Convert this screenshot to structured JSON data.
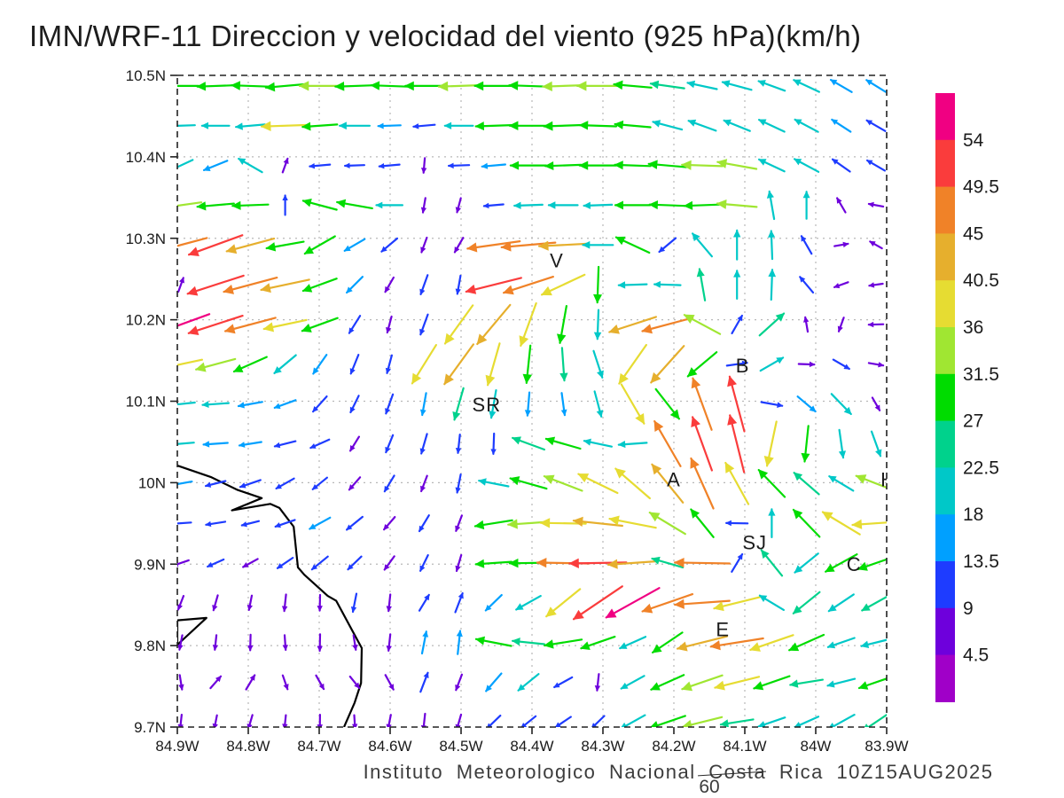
{
  "title": "IMN/WRF-11 Direccion y velocidad del viento (925 hPa)(km/h)",
  "footer": {
    "text": "Instituto Meteorologico Nacional Costa Rica  10Z15AUG2025",
    "forecast_hour": "60"
  },
  "chart_data": {
    "type": "vector-field",
    "model": "IMN/WRF-11",
    "variable": "Direccion y velocidad del viento",
    "level": "925 hPa",
    "units": "km/h",
    "valid_time": "10Z15AUG2025",
    "x_axis": {
      "values": [
        84.9,
        84.8,
        84.7,
        84.6,
        84.5,
        84.4,
        84.3,
        84.2,
        84.1,
        84.0,
        83.9
      ],
      "labels": [
        "84.9W",
        "84.8W",
        "84.7W",
        "84.6W",
        "84.5W",
        "84.4W",
        "84.3W",
        "84.2W",
        "84.1W",
        "84W",
        "83.9W"
      ],
      "min": 83.9,
      "max": 84.9
    },
    "y_axis": {
      "values": [
        10.5,
        10.4,
        10.3,
        10.2,
        10.1,
        10.0,
        9.9,
        9.8,
        9.7
      ],
      "labels": [
        "10.5N",
        "10.4N",
        "10.3N",
        "10.2N",
        "10.1N",
        "10N",
        "9.9N",
        "9.8N",
        "9.7N"
      ],
      "min": 9.7,
      "max": 10.5
    },
    "grid_on": true,
    "colorbar": {
      "position": "right",
      "levels": [
        4.5,
        9,
        13.5,
        18,
        22.5,
        27,
        31.5,
        36,
        40.5,
        45,
        49.5,
        54
      ],
      "labels_top_down": [
        "54",
        "49.5",
        "45",
        "40.5",
        "36",
        "31.5",
        "27",
        "22.5",
        "18",
        "13.5",
        "9",
        "4.5"
      ],
      "colors": [
        "#a000c8",
        "#6e00dc",
        "#1e3cff",
        "#00a0ff",
        "#00c8c8",
        "#00d28c",
        "#00dc00",
        "#a0e632",
        "#e6dc32",
        "#e6af2d",
        "#f08228",
        "#fa3c3c",
        "#f00082"
      ]
    },
    "cities": [
      {
        "label": "V",
        "lon": 84.365,
        "lat": 10.272
      },
      {
        "label": "B",
        "lon": 84.103,
        "lat": 10.143
      },
      {
        "label": "SR",
        "lon": 84.464,
        "lat": 10.095
      },
      {
        "label": "A",
        "lon": 84.2,
        "lat": 10.003
      },
      {
        "label": "SJ",
        "lon": 84.086,
        "lat": 9.926
      },
      {
        "label": "C",
        "lon": 83.946,
        "lat": 9.899
      },
      {
        "label": "E",
        "lon": 84.131,
        "lat": 9.819
      },
      {
        "label": "H",
        "lon": 83.898,
        "lat": 10.003
      }
    ],
    "coastline": {
      "main": [
        [
          84.9,
          10.021
        ],
        [
          84.853,
          10.007
        ],
        [
          84.815,
          9.991
        ],
        [
          84.781,
          9.981
        ],
        [
          84.823,
          9.966
        ],
        [
          84.769,
          9.974
        ],
        [
          84.756,
          9.969
        ],
        [
          84.736,
          9.946
        ],
        [
          84.73,
          9.896
        ],
        [
          84.721,
          9.887
        ],
        [
          84.688,
          9.861
        ],
        [
          84.676,
          9.855
        ],
        [
          84.65,
          9.813
        ],
        [
          84.64,
          9.797
        ],
        [
          84.641,
          9.754
        ],
        [
          84.65,
          9.73
        ],
        [
          84.665,
          9.7
        ]
      ],
      "peninsula": [
        [
          84.9,
          9.831
        ],
        [
          84.859,
          9.834
        ],
        [
          84.9,
          9.801
        ],
        [
          84.9,
          9.831
        ]
      ]
    },
    "wind_grid": {
      "lon_start": 84.895,
      "lon_step": -0.049,
      "lat_start": 10.487,
      "lat_step": -0.0488,
      "cols": 21,
      "rows": 17,
      "format": "direction_deg_toward:speed_kmh",
      "vectors": [
        "270:28 268:29 272:30 265:31 270:33 268:31 272:29 270:30 268:33 270:30 272:31 268:33 270:34 275:30 278:26 282:22 285:22 290:20 295:20 300:16 302:14",
        "268:20 270:19 265:21 268:40 266:27 270:22 268:14 265:13 270:20 268:28 270:30 268:31 272:29 275:28 285:22 290:21 292:20 295:20 298:18 303:14 300:13",
        "245:18 248:17 300:19 20:6 265:12 268:11 265:12 185:6 268:12 265:15 270:28 268:28 270:29 272:28 275:30 272:33 280:32 295:20 298:19 305:13 300:12",
        "262:34 265:29 268:28 0:11 285:27 280:28 270:18 190:6 195:6 265:11 268:20 270:21 268:20 270:27 272:28 268:28 275:32 350:20 0:19 330:8 280:6",
        "255:47 250:50 255:42 260:30 240:27 240:15 230:12 200:7 210:8 262:46 265:47 267:41 270:22 295:29 230:13 320:22 0:21 358:20 330:12 80:5 300:5",
        "20:6 252:52 255:48 258:42 250:28 225:14 210:8 200:12 190:10 256:50 252:45 245:40 182:28 268:20 272:18 350:24 0:20 2:22 320:12 250:6 262:5",
        "250:54 252:50 255:45 258:36 250:30 212:12 195:8 200:13 216:40 220:44 200:38 190:30 182:21 252:42 255:45 298:33 30:12 48:25 350:6 200:6 268:6",
        "258:36 255:33 246:28 230:20 215:15 202:12 195:10 212:38 216:42 196:36 186:30 176:25 162:20 215:40 222:42 230:30 82:12 60:18 92:7 120:10 100:6",
        "264:20 266:18 260:16 250:14 222:12 206:10 200:12 190:14 196:25 190:20 185:15 172:14 165:18 150:38 142:30 340:48 345:50 100:13 130:15 136:20 150:6",
        "265:18 266:16 261:14 256:13 246:12 212:8 202:10 196:12 186:10 182:12 290:26 286:28 282:20 266:20 330:45 340:50 346:52 192:38 186:28 172:20 160:18",
        "260:14 256:12 251:13 241:12 231:10 221:8 211:10 201:8 191:10 281:22 286:30 291:33 296:36 311:38 321:42 336:48 331:40 316:30 311:25 301:20 291:35",
        "266:12 261:11 256:9 251:12 241:15 231:12 221:8 211:10 201:8 261:30 266:33 271:38 276:42 281:40 301:34 321:28 271:13 0:20 316:30 301:36 266:40",
        "251:8 246:9 241:8 236:10 231:12 226:10 216:8 206:9 196:8 266:28 269:30 271:45 269:50 266:42 286:24 271:48 31:12 321:25 231:22 241:28 251:30",
        "201:6 196:7 191:6 186:8 181:7 191:10 186:8 31:10 21:12 226:14 241:20 231:36 236:52 241:54 251:46 266:48 256:40 301:20 231:26 236:22 241:24",
        "191:6 186:6 181:7 176:6 181:8 171:6 186:8 11:14 6:15 281:28 276:24 261:30 251:28 246:20 236:28 256:44 261:46 251:38 246:30 251:20 256:22",
        "171:6 41:7 31:8 161:6 151:7 141:6 151:8 21:12 201:8 221:15 231:18 241:12 186:8 241:18 246:28 251:35 256:38 251:30 261:25 256:20 251:28",
        "186:6 191:5 196:6 186:5 181:6 176:5 191:6 186:8 196:7 226:10 231:10 236:10 226:9 241:20 251:30 256:33 261:25 251:20 246:18 241:22 236:25"
      ]
    }
  }
}
